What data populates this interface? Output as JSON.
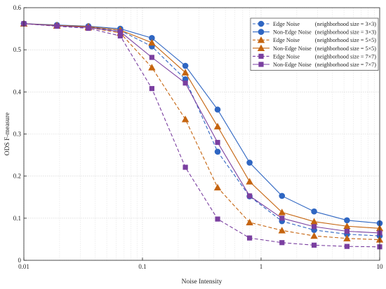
{
  "chart_data": {
    "type": "line",
    "xscale": "log",
    "xlabel": "Noise Intensity",
    "ylabel": "ODS F-measure",
    "xlim": [
      0.01,
      10
    ],
    "ylim": [
      0,
      0.6
    ],
    "xticks": [
      0.01,
      0.1,
      1,
      10
    ],
    "xtick_labels": [
      "0.01",
      "0.1",
      "1",
      "10"
    ],
    "yticks": [
      0,
      0.1,
      0.2,
      0.3,
      0.4,
      0.5,
      0.6
    ],
    "ytick_labels": [
      "0",
      "0.1",
      "0.2",
      "0.3",
      "0.4",
      "0.5",
      "0.6"
    ],
    "grid": true,
    "legend_position": "top-right",
    "x": [
      0.01,
      0.019,
      0.035,
      0.065,
      0.12,
      0.23,
      0.43,
      0.8,
      1.5,
      2.8,
      5.3,
      10
    ],
    "series": [
      {
        "name": "Edge Noise",
        "size_note": "(neighborhood size = 3×3)",
        "color": "#2f66c2",
        "style": "dashed",
        "marker": "circle",
        "values": [
          0.562,
          0.558,
          0.554,
          0.546,
          0.508,
          0.43,
          0.258,
          0.152,
          0.093,
          0.072,
          0.062,
          0.058
        ]
      },
      {
        "name": "Non-Edge Noise",
        "size_note": "(neighborhood size = 3×3)",
        "color": "#2f66c2",
        "style": "solid",
        "marker": "circle",
        "values": [
          0.562,
          0.559,
          0.556,
          0.55,
          0.528,
          0.462,
          0.358,
          0.232,
          0.153,
          0.116,
          0.095,
          0.088
        ]
      },
      {
        "name": "Edge Noise",
        "size_note": "(neighborhood size = 5×5)",
        "color": "#c5640f",
        "style": "dashed",
        "marker": "triangle",
        "values": [
          0.562,
          0.557,
          0.553,
          0.54,
          0.458,
          0.335,
          0.173,
          0.09,
          0.071,
          0.058,
          0.052,
          0.049
        ]
      },
      {
        "name": "Non-Edge Noise",
        "size_note": "(neighborhood size = 5×5)",
        "color": "#c5640f",
        "style": "solid",
        "marker": "triangle",
        "values": [
          0.562,
          0.558,
          0.555,
          0.547,
          0.517,
          0.446,
          0.318,
          0.187,
          0.114,
          0.092,
          0.081,
          0.076
        ]
      },
      {
        "name": "Edge Noise",
        "size_note": "(neighborhood size = 7×7)",
        "color": "#7a3fa0",
        "style": "dashed",
        "marker": "square",
        "values": [
          0.562,
          0.556,
          0.551,
          0.533,
          0.408,
          0.221,
          0.098,
          0.053,
          0.042,
          0.036,
          0.033,
          0.032
        ]
      },
      {
        "name": "Non-Edge Noise",
        "size_note": "(neighborhood size = 7×7)",
        "color": "#7a3fa0",
        "style": "solid",
        "marker": "square",
        "values": [
          0.562,
          0.557,
          0.553,
          0.543,
          0.482,
          0.421,
          0.28,
          0.153,
          0.1,
          0.08,
          0.069,
          0.065
        ]
      }
    ]
  }
}
